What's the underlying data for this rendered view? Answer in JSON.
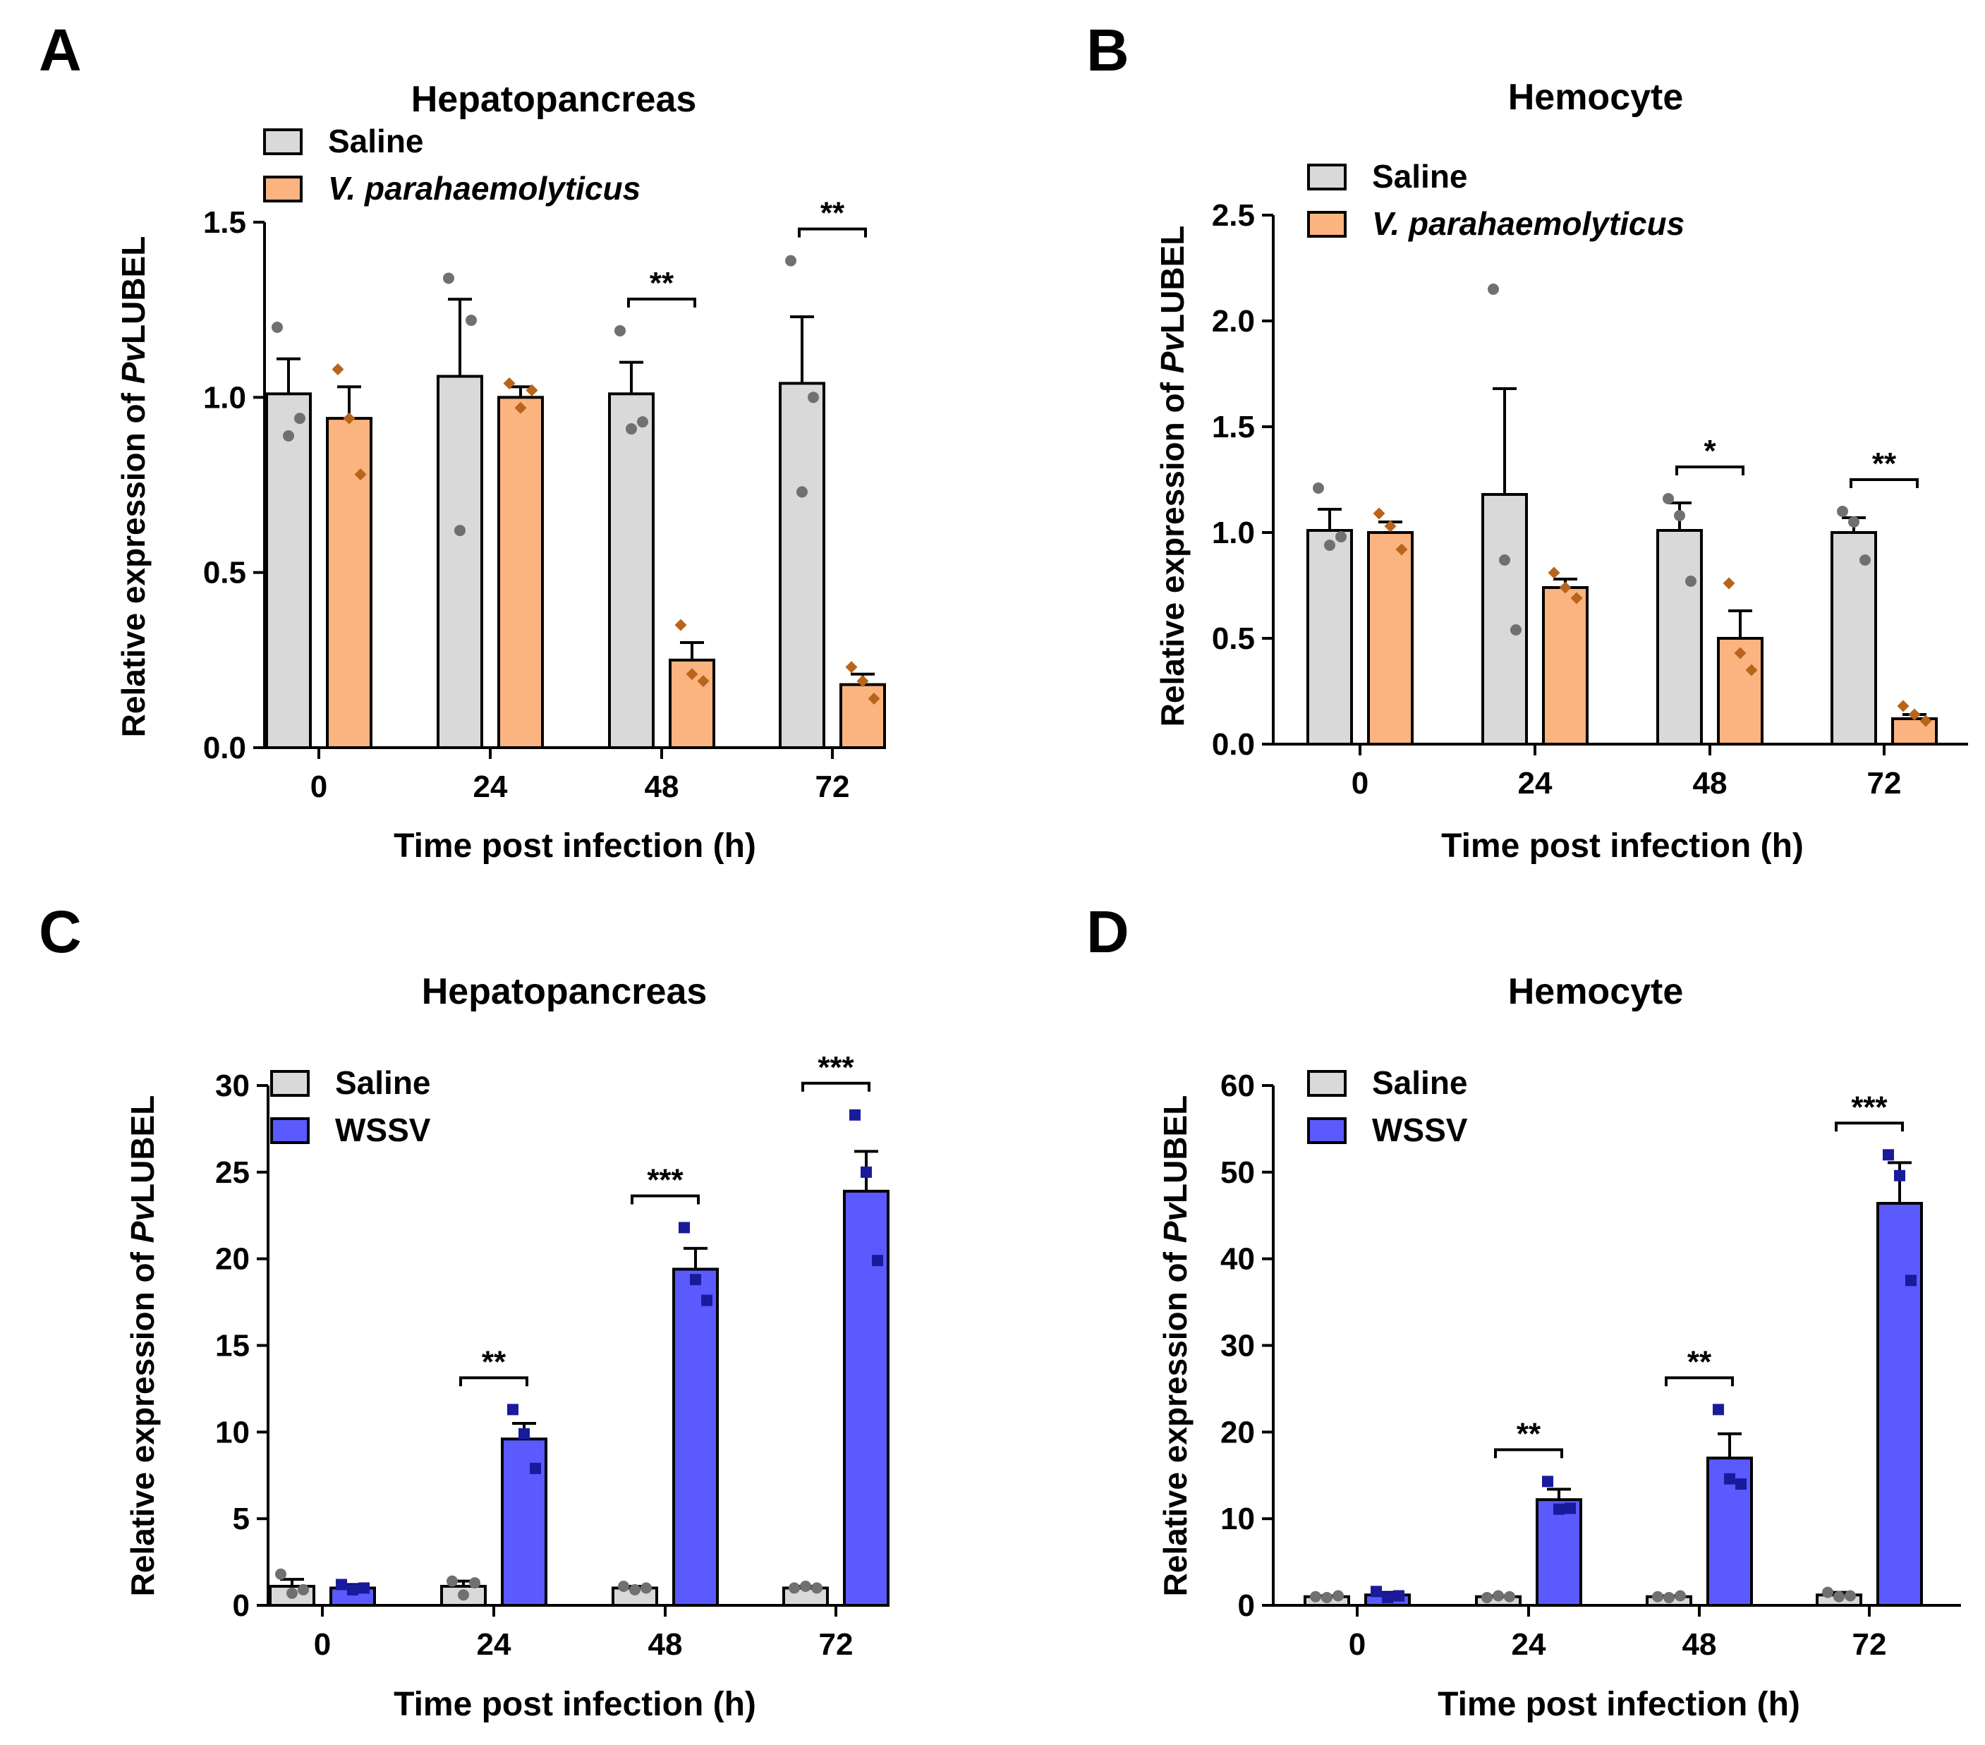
{
  "chart_data": [
    {
      "type": "bar",
      "panel": "A",
      "title": "Hepatopancreas",
      "xlabel": "Time post infection (h)",
      "ylabel_prefix": "Relative expression of ",
      "ylabel_gene_italic": "Pv",
      "ylabel_gene": "LUBEL",
      "categories": [
        "0",
        "24",
        "48",
        "72"
      ],
      "ylim": [
        0,
        1.5
      ],
      "yticks": [
        0,
        0.5,
        1.0,
        1.5
      ],
      "ytick_labels": [
        "0.0",
        "0.5",
        "1.0",
        "1.5"
      ],
      "series": [
        {
          "name": "Saline",
          "italic": false,
          "color": "#d9d9d9",
          "dot_color": "#707070",
          "marker": "circle",
          "values": [
            1.01,
            1.06,
            1.01,
            1.04
          ],
          "errors": [
            0.1,
            0.22,
            0.09,
            0.19
          ],
          "points": [
            [
              1.2,
              0.89,
              0.94
            ],
            [
              1.34,
              0.62,
              1.22
            ],
            [
              1.19,
              0.91,
              0.93
            ],
            [
              1.39,
              0.73,
              1.0
            ]
          ]
        },
        {
          "name": "V. parahaemolyticus",
          "italic": true,
          "color": "#fbb47f",
          "dot_color": "#b8651b",
          "marker": "diamond",
          "values": [
            0.94,
            1.0,
            0.25,
            0.18
          ],
          "errors": [
            0.09,
            0.03,
            0.05,
            0.03
          ],
          "points": [
            [
              1.08,
              0.94,
              0.78
            ],
            [
              1.04,
              0.97,
              1.02
            ],
            [
              0.35,
              0.21,
              0.19
            ],
            [
              0.23,
              0.19,
              0.14
            ]
          ]
        }
      ],
      "significance": [
        null,
        null,
        "**",
        "**"
      ]
    },
    {
      "type": "bar",
      "panel": "B",
      "title": "Hemocyte",
      "xlabel": "Time post infection (h)",
      "ylabel_prefix": "Relative expression of ",
      "ylabel_gene_italic": "Pv",
      "ylabel_gene": "LUBEL",
      "categories": [
        "0",
        "24",
        "48",
        "72"
      ],
      "ylim": [
        0,
        2.5
      ],
      "yticks": [
        0,
        0.5,
        1.0,
        1.5,
        2.0,
        2.5
      ],
      "ytick_labels": [
        "0.0",
        "0.5",
        "1.0",
        "1.5",
        "2.0",
        "2.5"
      ],
      "series": [
        {
          "name": "Saline",
          "italic": false,
          "color": "#d9d9d9",
          "dot_color": "#707070",
          "marker": "circle",
          "values": [
            1.01,
            1.18,
            1.01,
            1.0
          ],
          "errors": [
            0.1,
            0.5,
            0.13,
            0.07
          ],
          "points": [
            [
              1.21,
              0.94,
              0.98
            ],
            [
              2.15,
              0.87,
              0.54
            ],
            [
              1.16,
              1.08,
              0.77
            ],
            [
              1.1,
              1.05,
              0.87
            ]
          ]
        },
        {
          "name": "V. parahaemolyticus",
          "italic": true,
          "color": "#fbb47f",
          "dot_color": "#b8651b",
          "marker": "diamond",
          "values": [
            1.0,
            0.74,
            0.5,
            0.12
          ],
          "errors": [
            0.05,
            0.04,
            0.13,
            0.02
          ],
          "points": [
            [
              1.09,
              1.03,
              0.92
            ],
            [
              0.81,
              0.74,
              0.69
            ],
            [
              0.76,
              0.43,
              0.35
            ],
            [
              0.18,
              0.14,
              0.11
            ]
          ]
        }
      ],
      "significance": [
        null,
        null,
        "*",
        "**"
      ]
    },
    {
      "type": "bar",
      "panel": "C",
      "title": "Hepatopancreas",
      "xlabel": "Time post infection (h)",
      "ylabel_prefix": "Relative expression of ",
      "ylabel_gene_italic": "Pv",
      "ylabel_gene": "LUBEL",
      "categories": [
        "0",
        "24",
        "48",
        "72"
      ],
      "ylim": [
        0,
        30
      ],
      "yticks": [
        0,
        5,
        10,
        15,
        20,
        25,
        30
      ],
      "ytick_labels": [
        "0",
        "5",
        "10",
        "15",
        "20",
        "25",
        "30"
      ],
      "series": [
        {
          "name": "Saline",
          "italic": false,
          "color": "#d9d9d9",
          "dot_color": "#707070",
          "marker": "circle",
          "values": [
            1.1,
            1.1,
            1.0,
            1.0
          ],
          "errors": [
            0.4,
            0.3,
            0.1,
            0.1
          ],
          "points": [
            [
              1.8,
              0.7,
              0.9
            ],
            [
              1.4,
              0.6,
              1.3
            ],
            [
              1.1,
              0.9,
              1.0
            ],
            [
              1.0,
              1.1,
              1.0
            ]
          ]
        },
        {
          "name": "WSSV",
          "italic": false,
          "color": "#5a5aff",
          "dot_color": "#1a1a9c",
          "marker": "square",
          "values": [
            1.0,
            9.6,
            19.4,
            23.9
          ],
          "errors": [
            0.2,
            0.9,
            1.2,
            2.3
          ],
          "points": [
            [
              1.2,
              0.9,
              1.0
            ],
            [
              11.3,
              9.9,
              7.9
            ],
            [
              21.8,
              18.8,
              17.6
            ],
            [
              28.3,
              25.0,
              19.9
            ]
          ]
        }
      ],
      "significance": [
        null,
        "**",
        "***",
        "***"
      ]
    },
    {
      "type": "bar",
      "panel": "D",
      "title": "Hemocyte",
      "xlabel": "Time post infection (h)",
      "ylabel_prefix": "Relative expression of ",
      "ylabel_gene_italic": "Pv",
      "ylabel_gene": "LUBEL",
      "categories": [
        "0",
        "24",
        "48",
        "72"
      ],
      "ylim": [
        0,
        60
      ],
      "yticks": [
        0,
        10,
        20,
        30,
        40,
        50,
        60
      ],
      "ytick_labels": [
        "0",
        "10",
        "20",
        "30",
        "40",
        "50",
        "60"
      ],
      "series": [
        {
          "name": "Saline",
          "italic": false,
          "color": "#d9d9d9",
          "dot_color": "#707070",
          "marker": "circle",
          "values": [
            1.0,
            1.0,
            1.0,
            1.2
          ],
          "errors": [
            0.1,
            0.1,
            0.1,
            0.3
          ],
          "points": [
            [
              1.0,
              0.9,
              1.1
            ],
            [
              0.9,
              1.1,
              1.0
            ],
            [
              1.0,
              0.9,
              1.1
            ],
            [
              1.5,
              1.0,
              1.1
            ]
          ]
        },
        {
          "name": "WSSV",
          "italic": false,
          "color": "#5a5aff",
          "dot_color": "#1a1a9c",
          "marker": "square",
          "values": [
            1.2,
            12.2,
            17.0,
            46.4
          ],
          "errors": [
            0.3,
            1.2,
            2.8,
            4.7
          ],
          "points": [
            [
              1.6,
              0.9,
              1.1
            ],
            [
              14.3,
              11.1,
              11.2
            ],
            [
              22.6,
              14.6,
              14.0
            ],
            [
              52.0,
              49.6,
              37.5
            ]
          ]
        }
      ],
      "significance": [
        null,
        "**",
        "**",
        "***"
      ]
    }
  ]
}
